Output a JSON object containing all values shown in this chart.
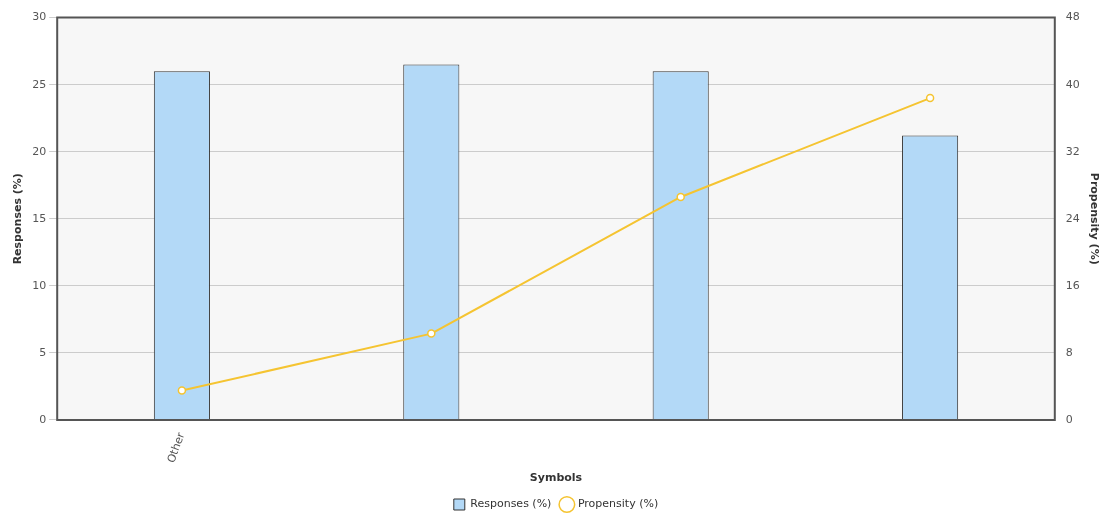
{
  "chart_data": {
    "type": "bar",
    "xlabel": "Symbols",
    "ylabel": "Responses (%)",
    "y2label": "Propensity (%)",
    "categories": [
      "Other",
      null,
      null,
      null
    ],
    "series": [
      {
        "name": "Responses (%)",
        "color": "#b3d9f7",
        "values": [
          26,
          26.5,
          26,
          21.2
        ]
      },
      {
        "name": "Propensity (%)",
        "type": "line",
        "axis": "y2",
        "color": "#f5c431",
        "values": [
          3.5,
          10.3,
          26.6,
          38.4
        ]
      }
    ],
    "ylim": [
      0,
      30
    ],
    "yticks": [
      0,
      5,
      10,
      15,
      20,
      25,
      30
    ],
    "y2lim": [
      0,
      48
    ],
    "y2ticks": [
      0,
      8,
      16,
      24,
      32,
      40,
      48
    ],
    "grid": "y",
    "legend": "bottom",
    "marker": "circle"
  }
}
